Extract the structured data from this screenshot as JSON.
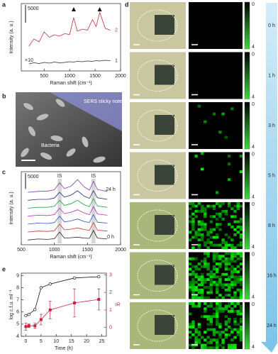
{
  "panel_labels": [
    "a",
    "b",
    "c",
    "d",
    "e"
  ],
  "panel_b": {
    "labels": [
      "SERS sticky note",
      "Bacteria"
    ]
  },
  "panel_d": {
    "times": [
      "0 h",
      "1 h",
      "3 h",
      "5 h",
      "8 h",
      "16 h",
      "24 h"
    ],
    "colorbar_ticks": [
      0,
      4
    ]
  },
  "chart_data": [
    {
      "type": "line",
      "xlabel": "Raman shift (cm⁻¹)",
      "ylabel": "Intensity (a. u.)",
      "scalebar": 5000,
      "xlim": [
        50,
        2000
      ],
      "xticks": [
        500,
        1000,
        1500,
        2000
      ],
      "ylim": [
        -1000,
        18000
      ],
      "annotations": [
        "×10"
      ],
      "triangle_markers": [
        1080,
        1590
      ],
      "x": [
        200,
        300,
        400,
        500,
        600,
        700,
        800,
        900,
        1000,
        1080,
        1150,
        1250,
        1350,
        1450,
        1520,
        1590,
        1700,
        1800
      ],
      "series": [
        {
          "name": "2",
          "color": "#c0303a",
          "values": [
            6000,
            8000,
            7200,
            10000,
            8500,
            9200,
            8800,
            9500,
            9300,
            14000,
            10200,
            10800,
            10500,
            13500,
            11500,
            15500,
            11000,
            10500
          ]
        },
        {
          "name": "1",
          "color": "#2a2a2a",
          "values": [
            1000,
            1300,
            1100,
            1400,
            1200,
            1500,
            1300,
            1400,
            1600,
            1500,
            1700,
            1600,
            1800,
            1700,
            1900,
            1800,
            2000,
            1900
          ]
        }
      ]
    },
    {
      "type": "line",
      "xlabel": "Raman shift (cm⁻¹)",
      "ylabel": "Intensity (a. u.)",
      "scalebar": 5000,
      "xlim": [
        500,
        2000
      ],
      "xticks": [
        500,
        1000,
        1500,
        2000
      ],
      "ylim": [
        0,
        23000
      ],
      "annotations": [
        "IS",
        "IS",
        "24 h",
        "0 h"
      ],
      "is_bands": [
        [
          1050,
          1110
        ],
        [
          1560,
          1620
        ]
      ],
      "x": [
        600,
        750,
        900,
        1000,
        1080,
        1150,
        1250,
        1350,
        1450,
        1530,
        1590,
        1650,
        1800
      ],
      "series": [
        {
          "color": "#222222",
          "values": [
            1500,
            1800,
            1700,
            1900,
            4000,
            2100,
            2200,
            2400,
            2100,
            2000,
            4500,
            2100,
            1800
          ]
        },
        {
          "color": "#d03030",
          "values": [
            4000,
            4300,
            4200,
            4400,
            6500,
            4700,
            4900,
            5300,
            4800,
            4500,
            7000,
            4600,
            4300
          ]
        },
        {
          "color": "#3050c0",
          "values": [
            6500,
            6800,
            6700,
            7000,
            9000,
            7200,
            7500,
            8100,
            7300,
            7000,
            9500,
            7100,
            6800
          ]
        },
        {
          "color": "#b030b0",
          "values": [
            9000,
            9300,
            9200,
            9500,
            11500,
            9800,
            10200,
            11000,
            10000,
            9500,
            12000,
            9700,
            9300
          ]
        },
        {
          "color": "#20a040",
          "values": [
            11500,
            11800,
            11800,
            12100,
            14000,
            12400,
            12900,
            14000,
            12600,
            12000,
            14500,
            12200,
            11800
          ]
        },
        {
          "color": "#203080",
          "values": [
            14000,
            14300,
            14300,
            14700,
            16500,
            15000,
            15600,
            17000,
            15300,
            14600,
            17000,
            14800,
            14300
          ]
        },
        {
          "color": "#8040a0",
          "values": [
            16500,
            16800,
            16900,
            17300,
            19500,
            17700,
            18400,
            20500,
            18200,
            17200,
            20000,
            17400,
            16800
          ]
        }
      ]
    },
    {
      "type": "dual",
      "xlabel": "Time (h)",
      "ylabel": "log c.f.u. ml⁻¹",
      "y2label": "IR",
      "xlim": [
        -1.5,
        26.5
      ],
      "xticks": [
        0,
        5,
        10,
        15,
        20,
        25
      ],
      "ylim": [
        4,
        9.2
      ],
      "yticks": [
        4,
        5,
        6,
        7,
        8,
        9
      ],
      "y2lim": [
        -0.5,
        3.1
      ],
      "y2ticks": [
        0,
        1,
        2,
        3
      ],
      "x": [
        0,
        1,
        3,
        5,
        8,
        16,
        24
      ],
      "series": [
        {
          "color": "#111111",
          "values": [
            5.7,
            5.8,
            6.2,
            8.0,
            8.3,
            8.8,
            8.9
          ]
        },
        {
          "color": "#d02040",
          "axis": "y2",
          "values": [
            0.05,
            0.1,
            0.1,
            0.45,
            1.0,
            1.4,
            1.6
          ],
          "errors": [
            0.2,
            0.1,
            0.15,
            0.3,
            0.5,
            0.8,
            0.6
          ]
        }
      ]
    }
  ]
}
